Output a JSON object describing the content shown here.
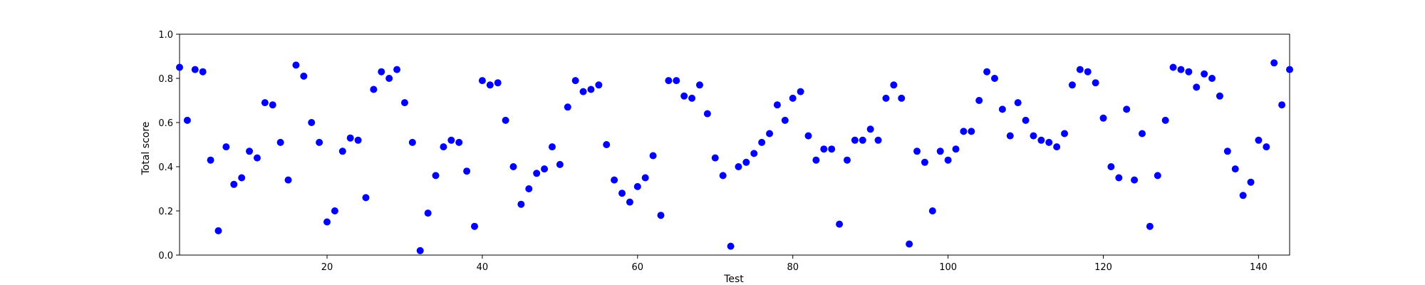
{
  "chart_data": {
    "type": "scatter",
    "title": "",
    "xlabel": "Test",
    "ylabel": "Total score",
    "xlim": [
      1,
      144
    ],
    "ylim": [
      0.0,
      1.0
    ],
    "x_ticks": [
      20,
      40,
      60,
      80,
      100,
      120,
      140
    ],
    "y_ticks": [
      0.0,
      0.2,
      0.4,
      0.6,
      0.8,
      1.0
    ],
    "y_tick_labels": [
      "0.0",
      "0.2",
      "0.4",
      "0.6",
      "0.8",
      "1.0"
    ],
    "grid": false,
    "marker_color": "#0000ff",
    "series": [
      {
        "x": [
          1,
          2,
          3,
          4,
          5,
          6,
          7,
          8,
          9,
          10,
          11,
          12,
          13,
          14,
          15,
          16,
          17,
          18,
          19,
          20,
          21,
          22,
          23,
          24,
          25,
          26,
          27,
          28,
          29,
          30,
          31,
          32,
          33,
          34,
          35,
          36,
          37,
          38,
          39,
          40,
          41,
          42,
          43,
          44,
          45,
          46,
          47,
          48,
          49,
          50,
          51,
          52,
          53,
          54,
          55,
          56,
          57,
          58,
          59,
          60,
          61,
          62,
          63,
          64,
          65,
          66,
          67,
          68,
          69,
          70,
          71,
          72,
          73,
          74,
          75,
          76,
          77,
          78,
          79,
          80,
          81,
          82,
          83,
          84,
          85,
          86,
          87,
          88,
          89,
          90,
          91,
          92,
          93,
          94,
          95,
          96,
          97,
          98,
          99,
          100,
          101,
          102,
          103,
          104,
          105,
          106,
          107,
          108,
          109,
          110,
          111,
          112,
          113,
          114,
          115,
          116,
          117,
          118,
          119,
          120,
          121,
          122,
          123,
          124,
          125,
          126,
          127,
          128,
          129,
          130,
          131,
          132,
          133,
          134,
          135,
          136,
          137,
          138,
          139,
          140,
          141,
          142,
          143,
          144
        ],
        "y": [
          0.85,
          0.61,
          0.84,
          0.83,
          0.43,
          0.11,
          0.49,
          0.32,
          0.35,
          0.47,
          0.44,
          0.69,
          0.68,
          0.51,
          0.34,
          0.86,
          0.81,
          0.6,
          0.51,
          0.15,
          0.2,
          0.47,
          0.53,
          0.52,
          0.26,
          0.75,
          0.83,
          0.8,
          0.84,
          0.69,
          0.51,
          0.02,
          0.19,
          0.36,
          0.49,
          0.52,
          0.51,
          0.38,
          0.13,
          0.79,
          0.77,
          0.78,
          0.61,
          0.4,
          0.23,
          0.3,
          0.37,
          0.39,
          0.49,
          0.41,
          0.67,
          0.79,
          0.74,
          0.75,
          0.77,
          0.5,
          0.34,
          0.28,
          0.24,
          0.31,
          0.35,
          0.45,
          0.18,
          0.79,
          0.79,
          0.72,
          0.71,
          0.77,
          0.64,
          0.44,
          0.36,
          0.04,
          0.4,
          0.42,
          0.46,
          0.51,
          0.55,
          0.68,
          0.61,
          0.71,
          0.74,
          0.54,
          0.43,
          0.48,
          0.48,
          0.14,
          0.43,
          0.52,
          0.52,
          0.57,
          0.52,
          0.71,
          0.77,
          0.71,
          0.05,
          0.47,
          0.42,
          0.2,
          0.47,
          0.43,
          0.48,
          0.56,
          0.56,
          0.7,
          0.83,
          0.8,
          0.66,
          0.54,
          0.69,
          0.61,
          0.54,
          0.52,
          0.51,
          0.49,
          0.55,
          0.77,
          0.84,
          0.83,
          0.78,
          0.62,
          0.4,
          0.35,
          0.66,
          0.34,
          0.55,
          0.13,
          0.36,
          0.61,
          0.85,
          0.84,
          0.83,
          0.76,
          0.82,
          0.8,
          0.72,
          0.47,
          0.39,
          0.27,
          0.33,
          0.52,
          0.49,
          0.87,
          0.68,
          0.84
        ]
      }
    ]
  }
}
